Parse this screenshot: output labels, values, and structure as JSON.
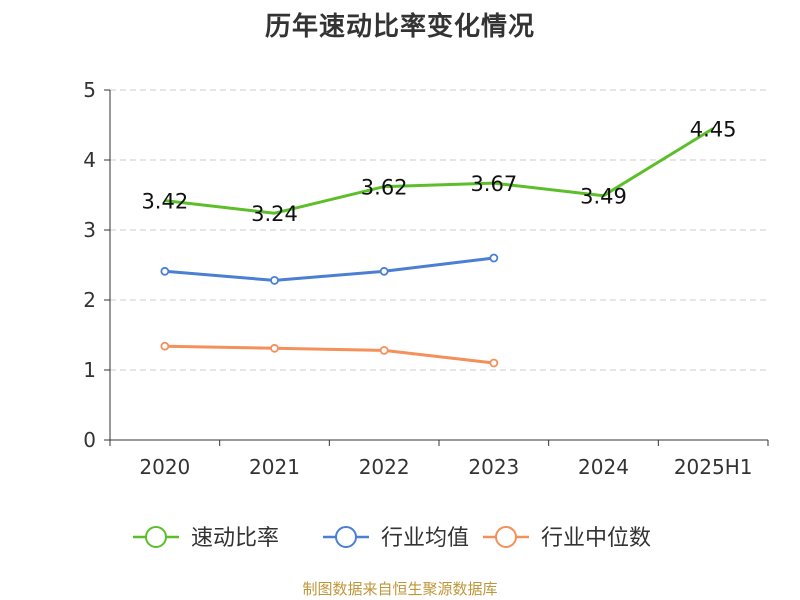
{
  "chart_data": {
    "type": "line",
    "title": "历年速动比率变化情况",
    "categories": [
      "2020",
      "2021",
      "2022",
      "2023",
      "2024",
      "2025H1"
    ],
    "ylim": [
      0,
      5
    ],
    "yticks": [
      0,
      1,
      2,
      3,
      4,
      5
    ],
    "grid": true,
    "legend": "bottom",
    "series": [
      {
        "name": "速动比率",
        "color": "#5cbf2a",
        "values": [
          3.42,
          3.24,
          3.62,
          3.67,
          3.49,
          4.45
        ],
        "show_labels": true,
        "show_markers": false
      },
      {
        "name": "行业均值",
        "color": "#4a7fd4",
        "values": [
          2.41,
          2.28,
          2.41,
          2.6,
          null,
          null
        ],
        "show_labels": false,
        "show_markers": true
      },
      {
        "name": "行业中位数",
        "color": "#f4905a",
        "values": [
          1.34,
          1.31,
          1.28,
          1.1,
          null,
          null
        ],
        "show_labels": false,
        "show_markers": true
      }
    ]
  },
  "source_text": "制图数据来自恒生聚源数据库"
}
